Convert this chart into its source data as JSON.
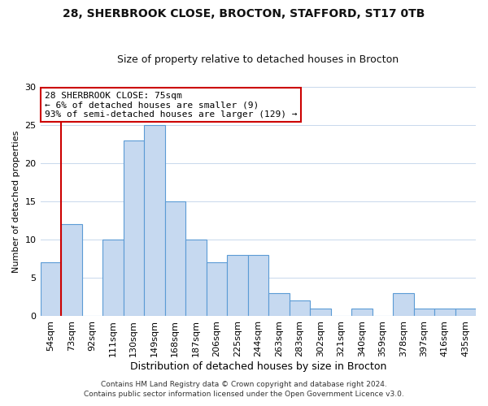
{
  "title1": "28, SHERBROOK CLOSE, BROCTON, STAFFORD, ST17 0TB",
  "title2": "Size of property relative to detached houses in Brocton",
  "xlabel": "Distribution of detached houses by size in Brocton",
  "ylabel": "Number of detached properties",
  "bar_labels": [
    "54sqm",
    "73sqm",
    "92sqm",
    "111sqm",
    "130sqm",
    "149sqm",
    "168sqm",
    "187sqm",
    "206sqm",
    "225sqm",
    "244sqm",
    "263sqm",
    "283sqm",
    "302sqm",
    "321sqm",
    "340sqm",
    "359sqm",
    "378sqm",
    "397sqm",
    "416sqm",
    "435sqm"
  ],
  "bar_values": [
    7,
    12,
    0,
    10,
    23,
    25,
    15,
    10,
    7,
    8,
    8,
    3,
    2,
    1,
    0,
    1,
    0,
    3,
    1,
    1,
    1
  ],
  "bar_color": "#c6d9f0",
  "bar_edge_color": "#5b9bd5",
  "vline_color": "#cc0000",
  "vline_x_index": 1,
  "ylim": [
    0,
    30
  ],
  "yticks": [
    0,
    5,
    10,
    15,
    20,
    25,
    30
  ],
  "annotation_text_line1": "28 SHERBROOK CLOSE: 75sqm",
  "annotation_text_line2": "← 6% of detached houses are smaller (9)",
  "annotation_text_line3": "93% of semi-detached houses are larger (129) →",
  "annotation_box_color": "#ffffff",
  "annotation_box_edge": "#cc0000",
  "footer1": "Contains HM Land Registry data © Crown copyright and database right 2024.",
  "footer2": "Contains public sector information licensed under the Open Government Licence v3.0.",
  "title1_fontsize": 10,
  "title2_fontsize": 9,
  "xlabel_fontsize": 9,
  "ylabel_fontsize": 8,
  "tick_fontsize": 8,
  "annot_fontsize": 8,
  "footer_fontsize": 6.5,
  "grid_color": "#c8d8ec",
  "background_color": "#ffffff"
}
